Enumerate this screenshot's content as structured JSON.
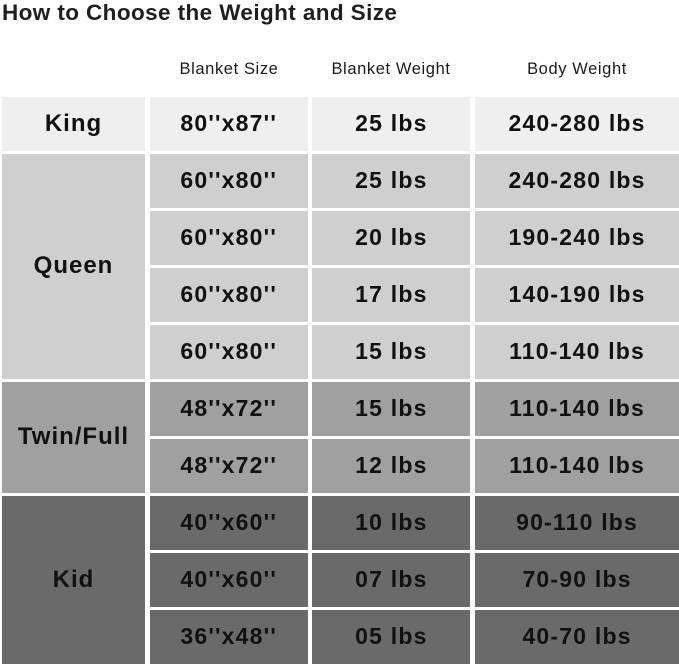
{
  "title": "How to Choose the Weight and Size",
  "headers": [
    "Blanket Size",
    "Blanket Weight",
    "Body Weight"
  ],
  "groups": [
    {
      "label": "King",
      "color": "#efefef",
      "rows": [
        [
          "80''x87''",
          "25 lbs",
          "240-280 lbs"
        ]
      ]
    },
    {
      "label": "Queen",
      "color": "#cfcfcf",
      "rows": [
        [
          "60''x80''",
          "25 lbs",
          "240-280 lbs"
        ],
        [
          "60''x80''",
          "20 lbs",
          "190-240 lbs"
        ],
        [
          "60''x80''",
          "17 lbs",
          "140-190 lbs"
        ],
        [
          "60''x80''",
          "15 lbs",
          "110-140 lbs"
        ]
      ]
    },
    {
      "label": "Twin/Full",
      "color": "#a0a0a0",
      "rows": [
        [
          "48''x72''",
          "15 lbs",
          "110-140 lbs"
        ],
        [
          "48''x72''",
          "12 lbs",
          "110-140 lbs"
        ]
      ]
    },
    {
      "label": "Kid",
      "color": "#6a6a6a",
      "rows": [
        [
          "40''x60''",
          "10 lbs",
          "90-110 lbs"
        ],
        [
          "40''x60''",
          "07 lbs",
          "70-90 lbs"
        ],
        [
          "36''x48''",
          "05 lbs",
          "40-70 lbs"
        ]
      ]
    }
  ]
}
